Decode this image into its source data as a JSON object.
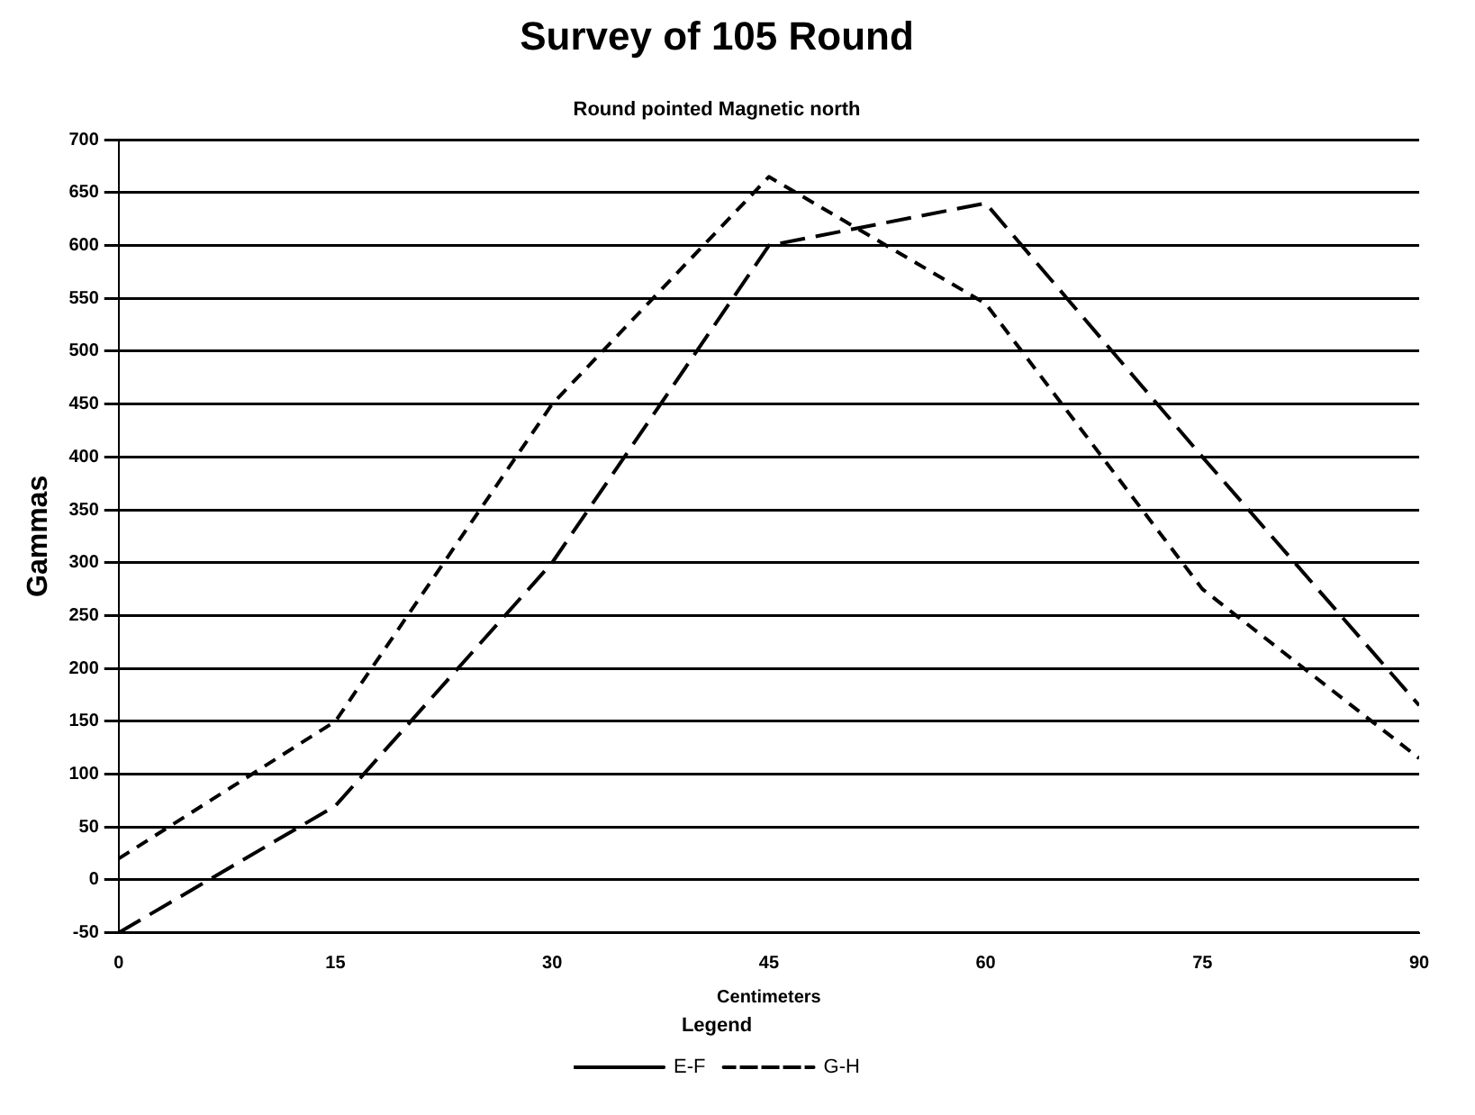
{
  "chart_data": {
    "type": "line",
    "title": "Survey of 105 Round",
    "subtitle": "Round pointed Magnetic north",
    "xlabel": "Centimeters",
    "ylabel": "Gammas",
    "legend_title": "Legend",
    "x": [
      0,
      15,
      30,
      45,
      60,
      75,
      90
    ],
    "series": [
      {
        "name": "E-F",
        "color": "#000000",
        "line_style": "dashed",
        "values": [
          -50,
          70,
          300,
          600,
          640,
          400,
          165
        ]
      },
      {
        "name": "G-H",
        "color": "#000000",
        "line_style": "dotted",
        "values": [
          20,
          150,
          450,
          665,
          545,
          275,
          115
        ]
      }
    ],
    "xlim": [
      0,
      90
    ],
    "xticks": [
      0,
      15,
      30,
      45,
      60,
      75,
      90
    ],
    "ylim": [
      -50,
      700
    ],
    "yticks": [
      -50,
      0,
      50,
      100,
      150,
      200,
      250,
      300,
      350,
      400,
      450,
      500,
      550,
      600,
      650,
      700
    ],
    "grid": "y",
    "legend": "bottom",
    "marker": "none"
  }
}
